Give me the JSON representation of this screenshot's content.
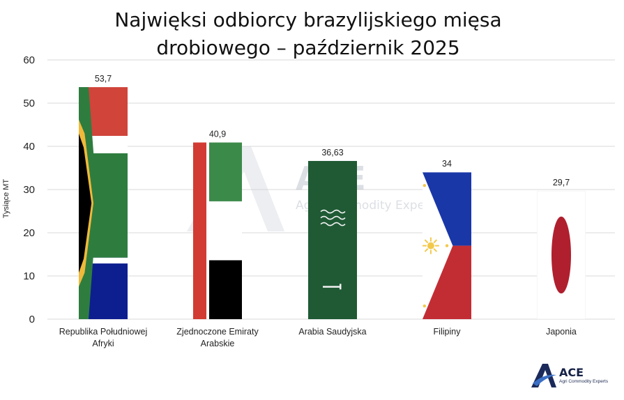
{
  "chart_data": {
    "type": "bar",
    "title_lines": [
      "Najwięksi odbiorcy brazylijskiego mięsa",
      "drobiowego – październik 2025"
    ],
    "ylabel": "Tysiące MT",
    "xlabel": "",
    "ylim": [
      0,
      60
    ],
    "yticks": [
      0,
      10,
      20,
      30,
      40,
      50,
      60
    ],
    "grid": true,
    "categories": [
      [
        "Republika Południowej",
        "Afryki"
      ],
      [
        "Zjednoczone Emiraty",
        "Arabskie"
      ],
      [
        "Arabia Saudyjska"
      ],
      [
        "Filipiny"
      ],
      [
        "Japonia"
      ]
    ],
    "values": [
      53.7,
      40.9,
      36.63,
      34,
      29.7
    ],
    "value_labels": [
      "53,7",
      "40,9",
      "36,63",
      "34",
      "29,7"
    ],
    "bar_fills": [
      "flag-south-africa",
      "flag-uae",
      "flag-saudi-arabia",
      "flag-philippines",
      "flag-japan"
    ]
  },
  "watermark": {
    "name": "ACE",
    "tagline": "Agri Commodity Experts"
  },
  "logo": {
    "name": "ACE",
    "tagline": "Agri Commodity Experts"
  },
  "colors": {
    "za_red": "#d0443a",
    "za_blue": "#0d1f8f",
    "za_green": "#2e7d3f",
    "za_yellow": "#f0b93a",
    "uae_red": "#d23b32",
    "uae_green": "#3c8a4a",
    "sa_green": "#1f5a34",
    "ph_blue": "#1a37a8",
    "ph_red": "#c22d34",
    "ph_sun": "#f2c94c",
    "jp_red": "#b01f2e",
    "brand": "#1b2a5a"
  }
}
